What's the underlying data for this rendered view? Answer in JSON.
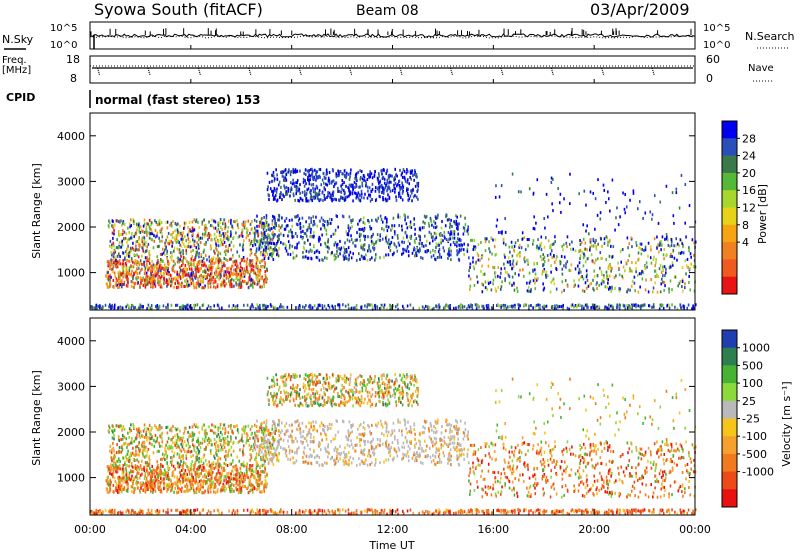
{
  "header": {
    "station": "Syowa South (fitACF)",
    "beam": "Beam 08",
    "date": "03/Apr/2009"
  },
  "side_labels": {
    "nsky": "N.Sky",
    "freq": "Freq.",
    "mhz": "[MHz]",
    "cpid": "CPID",
    "nsearch": "N.Search",
    "nave": "Nave"
  },
  "cpid_text": "normal (fast stereo) 153",
  "chart_data": [
    {
      "type": "line",
      "panel": "noise",
      "y_left_ticks": [
        "10^5",
        "10^0"
      ],
      "y_right_ticks": [
        "10^5",
        "10^0"
      ],
      "series": [
        {
          "name": "N.Sky"
        },
        {
          "name": "N.Search"
        }
      ]
    },
    {
      "type": "line",
      "panel": "frequency",
      "y_left_ticks": [
        "18",
        "8"
      ],
      "y_right_ticks": [
        "60",
        "0"
      ],
      "series": [
        {
          "name": "Freq."
        },
        {
          "name": "Nave"
        }
      ]
    },
    {
      "type": "heatmap",
      "panel": "power",
      "ylabel": "Slant Range [km]",
      "ylim": [
        180,
        4500
      ],
      "y_ticks": [
        "1000",
        "2000",
        "3000",
        "4000"
      ],
      "colorbar": {
        "label": "Power [dB]",
        "ticks": [
          "28",
          "24",
          "20",
          "16",
          "12",
          "8",
          "4"
        ],
        "colors": [
          "#0000ee",
          "#2b4fb8",
          "#3a7a4a",
          "#55b836",
          "#a6d72c",
          "#e7d119",
          "#f7a413",
          "#f08020",
          "#ef5a1e",
          "#e81414"
        ]
      }
    },
    {
      "type": "heatmap",
      "panel": "velocity",
      "ylabel": "Slant Range [km]",
      "xlabel": "Time UT",
      "ylim": [
        180,
        4500
      ],
      "y_ticks": [
        "1000",
        "2000",
        "3000",
        "4000"
      ],
      "x_ticks": [
        "00:00",
        "04:00",
        "08:00",
        "12:00",
        "16:00",
        "20:00",
        "00:00"
      ],
      "colorbar": {
        "label": "Velocity [m s⁻¹]",
        "ticks": [
          "1000",
          "500",
          "100",
          "25",
          "-25",
          "-100",
          "-500",
          "-1000"
        ],
        "colors": [
          "#1f3fb0",
          "#2e7f4f",
          "#46b335",
          "#8bd93a",
          "#b9b9b9",
          "#f6c51a",
          "#f6a12d",
          "#f07a1d",
          "#ec4a18",
          "#e81010"
        ]
      }
    }
  ]
}
